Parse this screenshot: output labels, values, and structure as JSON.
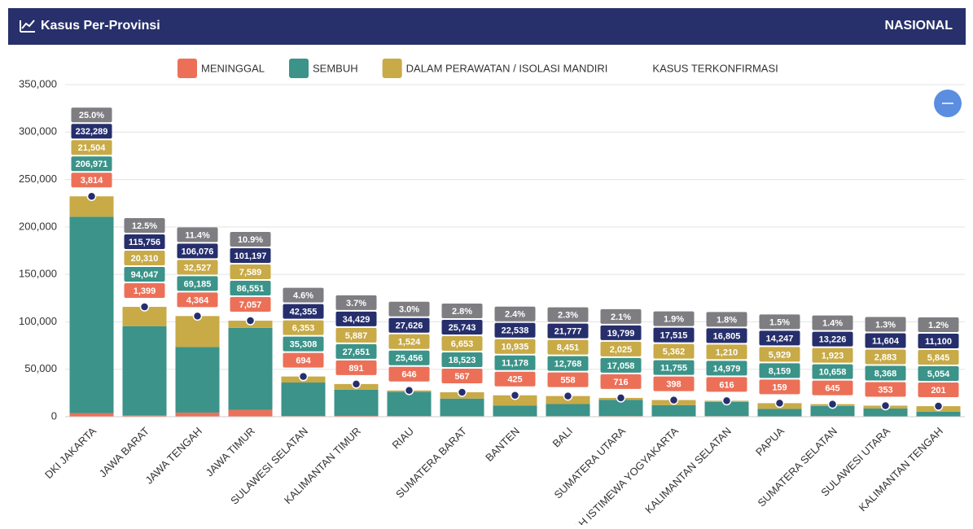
{
  "header": {
    "title": "Kasus Per-Provinsi",
    "scope": "NASIONAL"
  },
  "chart_data": {
    "type": "bar",
    "stacked": true,
    "grid": true,
    "categories": [
      "DKI JAKARTA",
      "JAWA BARAT",
      "JAWA TENGAH",
      "JAWA TIMUR",
      "SULAWESI SELATAN",
      "KALIMANTAN TIMUR",
      "RIAU",
      "SUMATERA BARAT",
      "BANTEN",
      "BALI",
      "SUMATERA UTARA",
      "DAERAH ISTIMEWA YOGYAKARTA",
      "KALIMANTAN SELATAN",
      "PAPUA",
      "SUMATERA SELATAN",
      "SULAWESI UTARA",
      "KALIMANTAN TENGAH"
    ],
    "series": [
      {
        "name": "MENINGGAL",
        "color": "#ec7058",
        "values": [
          3814,
          1399,
          4364,
          7057,
          694,
          891,
          646,
          567,
          425,
          558,
          716,
          398,
          616,
          159,
          645,
          353,
          201
        ],
        "value_labels": [
          "3,814",
          "1,399",
          "4,364",
          "7,057",
          "694",
          "891",
          "646",
          "567",
          "425",
          "558",
          "716",
          "398",
          "616",
          "159",
          "645",
          "353",
          "201"
        ]
      },
      {
        "name": "SEMBUH",
        "color": "#3b9389",
        "values": [
          206971,
          94047,
          69185,
          86551,
          35308,
          27651,
          25456,
          18523,
          11178,
          12768,
          17058,
          11755,
          14979,
          8159,
          10658,
          8368,
          5054
        ],
        "value_labels": [
          "206,971",
          "94,047",
          "69,185",
          "86,551",
          "35,308",
          "27,651",
          "25,456",
          "18,523",
          "11,178",
          "12,768",
          "17,058",
          "11,755",
          "14,979",
          "8,159",
          "10,658",
          "8,368",
          "5,054"
        ]
      },
      {
        "name": "DALAM PERAWATAN / ISOLASI MANDIRI",
        "color": "#c8aa47",
        "values": [
          21504,
          20310,
          32527,
          7589,
          6353,
          5887,
          1524,
          6653,
          10935,
          8451,
          2025,
          5362,
          1210,
          5929,
          1923,
          2883,
          5845
        ],
        "value_labels": [
          "21,504",
          "20,310",
          "32,527",
          "7,589",
          "6,353",
          "5,887",
          "1,524",
          "6,653",
          "10,935",
          "8,451",
          "2,025",
          "5,362",
          "1,210",
          "5,929",
          "1,923",
          "2,883",
          "5,845"
        ]
      },
      {
        "name": "KASUS TERKONFIRMASI",
        "type": "line",
        "color": "#262f6c",
        "values": [
          232289,
          115756,
          106076,
          101197,
          42355,
          34429,
          27626,
          25743,
          22538,
          21777,
          19799,
          17515,
          16805,
          14247,
          13226,
          11604,
          11100
        ],
        "value_labels": [
          "232,289",
          "115,756",
          "106,076",
          "101,197",
          "42,355",
          "34,429",
          "27,626",
          "25,743",
          "22,538",
          "21,777",
          "19,799",
          "17,515",
          "16,805",
          "14,247",
          "13,226",
          "11,604",
          "11,100"
        ]
      }
    ],
    "share": {
      "color": "#7d7d82",
      "values": [
        25.0,
        12.5,
        11.4,
        10.9,
        4.6,
        3.7,
        3.0,
        2.8,
        2.4,
        2.3,
        2.1,
        1.9,
        1.8,
        1.5,
        1.4,
        1.3,
        1.2
      ],
      "value_labels": [
        "25.0%",
        "12.5%",
        "11.4%",
        "10.9%",
        "4.6%",
        "3.7%",
        "3.0%",
        "2.8%",
        "2.4%",
        "2.3%",
        "2.1%",
        "1.9%",
        "1.8%",
        "1.5%",
        "1.4%",
        "1.3%",
        "1.2%"
      ]
    },
    "ylim": [
      0,
      350000
    ],
    "yticks": [
      0,
      {
        "value": 50000,
        "label": "50,000"
      },
      {
        "value": 100000,
        "label": "100,000"
      },
      {
        "value": 150000,
        "label": "150,000"
      },
      {
        "value": 200000,
        "label": "200,000"
      },
      {
        "value": 250000,
        "label": "250,000"
      },
      {
        "value": 300000,
        "label": "300,000"
      },
      {
        "value": 350000,
        "label": "350,000"
      }
    ]
  }
}
